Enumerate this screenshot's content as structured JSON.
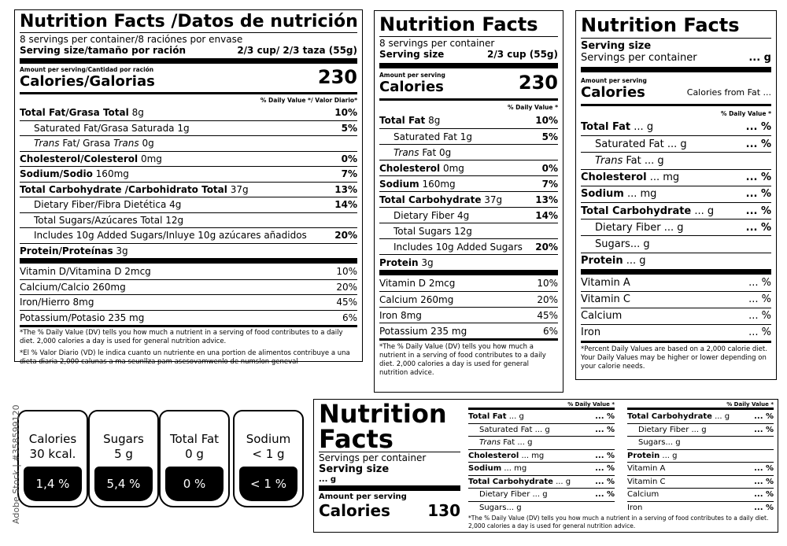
{
  "bilingual": {
    "title": "Nutrition Facts /Datos de nutrición",
    "servings": "8 servings per container/8 raciónes por envase",
    "serving_size_label": "Serving size/tamaño por ración",
    "serving_size_value": "2/3 cup/ 2/3 taza (55g)",
    "amount_label": "Amount per serving/Cantidad por ración",
    "calories_label": "Calories/Galorias",
    "calories_value": "230",
    "dv_header": "% Daily Value */ Valor Diario*",
    "rows": [
      {
        "bold": "Total Fat/Grasa Total",
        "rest": " 8g",
        "dv": "10%"
      },
      {
        "bold": "",
        "rest": "Saturated Fat/Grasa Saturada  1g",
        "dv": "5%"
      },
      {
        "bold": "",
        "rest": "Trans Fat/ Grasa Trans  0g",
        "dv": ""
      },
      {
        "bold": "Cholesterol/Colesterol",
        "rest": " 0mg",
        "dv": "0%"
      },
      {
        "bold": "Sodium/Sodio",
        "rest": " 160mg",
        "dv": "7%"
      },
      {
        "bold": "Total Carbohydrate /Carbohidrato Total",
        "rest": " 37g",
        "dv": "13%"
      },
      {
        "bold": "",
        "rest": "Dietary Fiber/Fibra Dietética 4g",
        "dv": "14%"
      },
      {
        "bold": "",
        "rest": "Total Sugars/Azúcares Total 12g",
        "dv": ""
      },
      {
        "bold": "",
        "rest": "Includes 10g Added Sugars/Inluye 10g azúcares añadidos",
        "dv": "20%"
      },
      {
        "bold": "Protein/Proteínas",
        "rest": " 3g",
        "dv": ""
      }
    ],
    "vitamins": [
      {
        "name": "Vitamin D/Vitamina D  2mcg",
        "dv": "10%"
      },
      {
        "name": "Calcium/Calcio  260mg",
        "dv": "20%"
      },
      {
        "name": "Iron/Hierro 8mg",
        "dv": "45%"
      },
      {
        "name": "Potassium/Potasio  235 mg",
        "dv": "6%"
      }
    ],
    "footnote_en": "*The % Daily Value (DV) tells you how much a nutrient in a serving of food contributes to a daily diet. 2,000 calories a day is used for general nutrition advice.",
    "footnote_es": "*El % Valor Diario (VD) le indica cuanto un  nutriente en una portion de alimentos contribuye a una dieta diaria 2,000 calunas a ma seunllza pam asesovamwenlo de numslon geneval"
  },
  "standard": {
    "title": "Nutrition Facts",
    "servings": "8 servings per container",
    "serving_size_label": "Serving size",
    "serving_size_value": "2/3 cup (55g)",
    "amount_label": "Amount per serving",
    "calories_label": "Calories",
    "calories_value": "230",
    "dv_header": "% Daily Value *",
    "rows": [
      {
        "bold": "Total Fat",
        "rest": " 8g",
        "dv": "10%"
      },
      {
        "bold": "",
        "rest": "Saturated Fat  1g",
        "dv": "5%"
      },
      {
        "bold": "",
        "rest": "Trans Fat  0g",
        "dv": ""
      },
      {
        "bold": "Cholesterol",
        "rest": " 0mg",
        "dv": "0%"
      },
      {
        "bold": "Sodium",
        "rest": " 160mg",
        "dv": "7%"
      },
      {
        "bold": "Total Carbohydrate",
        "rest": " 37g",
        "dv": "13%"
      },
      {
        "bold": "",
        "rest": "Dietary Fiber 4g",
        "dv": "14%"
      },
      {
        "bold": "",
        "rest": "Total Sugars 12g",
        "dv": ""
      },
      {
        "bold": "",
        "rest": "Includes 10g Added Sugars",
        "dv": "20%"
      },
      {
        "bold": "Protein",
        "rest": "  3g",
        "dv": ""
      }
    ],
    "vitamins": [
      {
        "name": "Vitamin D  2mcg",
        "dv": "10%"
      },
      {
        "name": "Calcium  260mg",
        "dv": "20%"
      },
      {
        "name": "Iron 8mg",
        "dv": "45%"
      },
      {
        "name": "Potassium  235 mg",
        "dv": "6%"
      }
    ],
    "footnote": "*The % Daily Value (DV) tells you how much a nutrient in a serving of food contributes to a daily diet. 2,000 calories a day is used for general nutrition advice."
  },
  "blank": {
    "title": "Nutrition Facts",
    "serving_size_label": "Serving size",
    "servings_label": "Servings per container",
    "servings_value": "...  g",
    "amount_label": "Amount per serving",
    "calories_label": "Calories",
    "calories_from_fat": "Calories from Fat ...",
    "dv_header": "% Daily Value *",
    "rows": [
      {
        "bold": "Total Fat",
        "rest": " ...  g",
        "dv": "... %"
      },
      {
        "bold": "",
        "rest": "Saturated Fat  ...  g",
        "dv": "... %"
      },
      {
        "bold": "",
        "rest": "Trans Fat  ... g",
        "dv": ""
      },
      {
        "bold": "Cholesterol",
        "rest": " ... mg",
        "dv": "... %"
      },
      {
        "bold": "Sodium",
        "rest": " ...  mg",
        "dv": "... %"
      },
      {
        "bold": "Total Carbohydrate",
        "rest": " ...  g",
        "dv": "... %"
      },
      {
        "bold": "",
        "rest": "Dietary Fiber ...  g",
        "dv": "... %"
      },
      {
        "bold": "",
        "rest": "Sugars... g",
        "dv": ""
      },
      {
        "bold": "Protein",
        "rest": "  ...  g",
        "dv": ""
      }
    ],
    "vitamins": [
      {
        "name": "Vitamin A",
        "dv": "...  %"
      },
      {
        "name": "Vitamin C",
        "dv": "...  %"
      },
      {
        "name": "Calcium",
        "dv": "...  %"
      },
      {
        "name": "Iron",
        "dv": "...  %"
      }
    ],
    "footnote": "*Percent Daily Values are based on a 2,000 calorie diet. Your Daily Values may be higher or lower depending on your calorie needs."
  },
  "horizontal": {
    "title_line1": "Nutrition",
    "title_line2": "Facts",
    "servings_label": "Servings per container",
    "serving_size_label": "Serving size",
    "serving_size_value": "... g",
    "amount_label": "Amount per serving",
    "calories_label": "Calories",
    "calories_value": "130",
    "dv_header": "% Daily Value *",
    "col1": [
      {
        "bold": "Total Fat",
        "rest": " ...  g",
        "dv": "... %",
        "indent": false
      },
      {
        "bold": "",
        "rest": "Saturated Fat ...  g",
        "dv": "... %",
        "indent": true
      },
      {
        "bold": "",
        "rest": "Trans Fat  ... g",
        "dv": "",
        "indent": true
      },
      {
        "bold": "Cholesterol",
        "rest": " ... mg",
        "dv": "... %",
        "indent": false
      },
      {
        "bold": "Sodium",
        "rest": " ...  mg",
        "dv": "... %",
        "indent": false
      },
      {
        "bold": "Total Carbohydrate",
        "rest": " ...  g",
        "dv": "... %",
        "indent": false
      },
      {
        "bold": "",
        "rest": "Dietary Fiber ...  g",
        "dv": "... %",
        "indent": true
      },
      {
        "bold": "",
        "rest": "Sugars... g",
        "dv": "",
        "indent": true
      }
    ],
    "col2": [
      {
        "bold": "Total Carbohydrate",
        "rest": " ...  g",
        "dv": "... %",
        "indent": false
      },
      {
        "bold": "",
        "rest": "Dietary Fiber ...  g",
        "dv": "... %",
        "indent": true
      },
      {
        "bold": "",
        "rest": "Sugars... g",
        "dv": "",
        "indent": true
      },
      {
        "bold": "Protein",
        "rest": " ...  g",
        "dv": "",
        "indent": false
      },
      {
        "bold": "",
        "rest": "Vitamin A",
        "dv": "...  %",
        "indent": false
      },
      {
        "bold": "",
        "rest": "Vitamin C",
        "dv": "...  %",
        "indent": false
      },
      {
        "bold": "",
        "rest": "Calcium",
        "dv": "...  %",
        "indent": false
      },
      {
        "bold": "",
        "rest": "Iron",
        "dv": "...  %",
        "indent": false
      }
    ],
    "footnote": "*The % Daily Value (DV) tells you how much a nutrient in a serving of food contributes to a daily diet. 2,000 calories a day is used for general nutrition advice."
  },
  "badges": [
    {
      "label_line1": "Calories",
      "label_line2": "30 kcal.",
      "percent": "1,4 %"
    },
    {
      "label_line1": "Sugars",
      "label_line2": "5 g",
      "percent": "5,4 %"
    },
    {
      "label_line1": "Total Fat",
      "label_line2": "0 g",
      "percent": "0 %"
    },
    {
      "label_line1": "Sodium",
      "label_line2": "< 1 g",
      "percent": "< 1 %"
    }
  ],
  "watermark": "Adobe Stock | #358599120"
}
